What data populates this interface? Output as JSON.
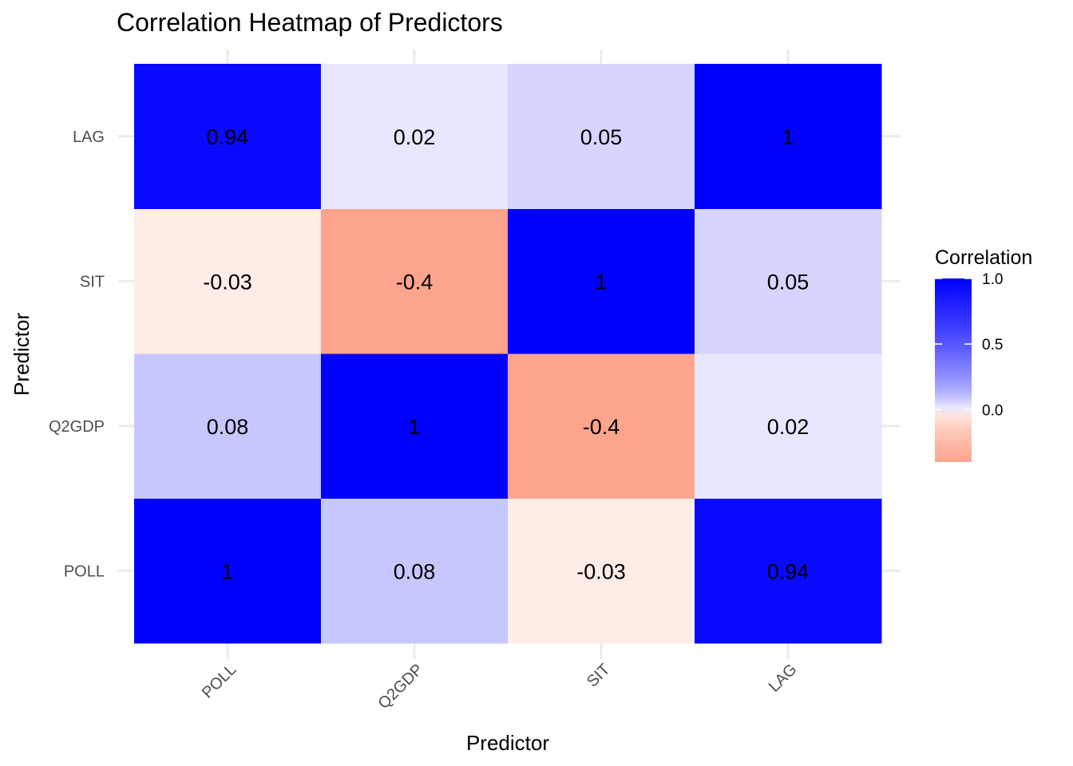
{
  "chart_data": {
    "type": "heatmap",
    "title": "Correlation Heatmap of Predictors",
    "xlabel": "Predictor",
    "ylabel": "Predictor",
    "x_categories": [
      "POLL",
      "Q2GDP",
      "SIT",
      "LAG"
    ],
    "y_categories": [
      "POLL",
      "Q2GDP",
      "SIT",
      "LAG"
    ],
    "matrix": [
      [
        1,
        0.08,
        -0.03,
        0.94
      ],
      [
        0.08,
        1,
        -0.4,
        0.02
      ],
      [
        -0.03,
        -0.4,
        1,
        0.05
      ],
      [
        0.94,
        0.02,
        0.05,
        1
      ]
    ],
    "cell_labels": [
      [
        "1",
        "0.08",
        "-0.03",
        "0.94"
      ],
      [
        "0.08",
        "1",
        "-0.4",
        "0.02"
      ],
      [
        "-0.03",
        "-0.4",
        "1",
        "0.05"
      ],
      [
        "0.94",
        "0.02",
        "0.05",
        "1"
      ]
    ],
    "legend": {
      "title": "Correlation",
      "ticks": [
        1.0,
        0.5,
        0.0
      ],
      "tick_labels": [
        "1.0",
        "0.5",
        "0.0"
      ],
      "range": [
        -0.4,
        1.0
      ],
      "placement": "right"
    },
    "colors": {
      "low": "#fca48c",
      "mid": "#ffffff",
      "high": "#0000ff"
    },
    "grid": true
  }
}
